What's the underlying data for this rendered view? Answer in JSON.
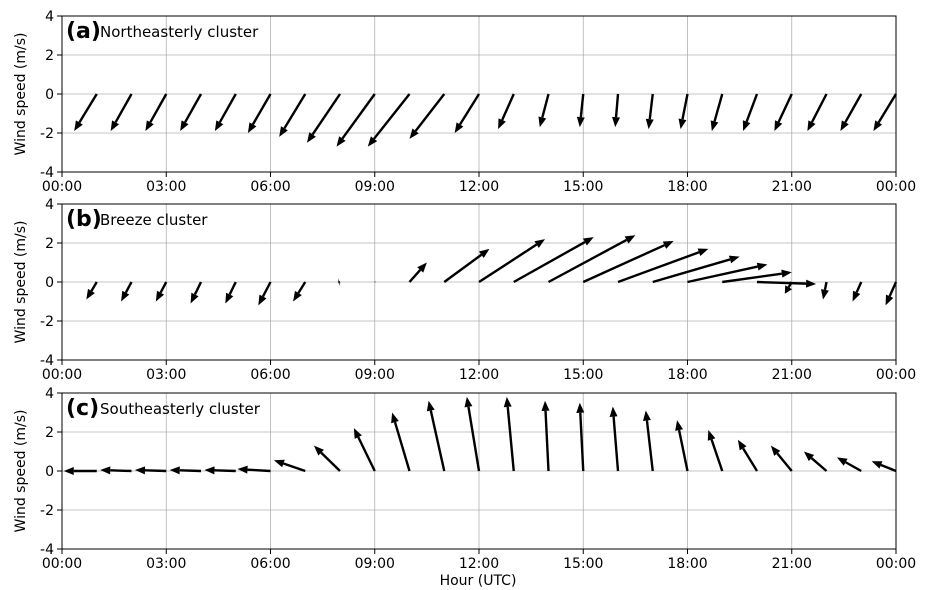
{
  "figure": {
    "xlabel": "Hour (UTC)",
    "ylabel": "Wind speed (m/s)",
    "x_ticks": [
      "00:00",
      "03:00",
      "06:00",
      "09:00",
      "12:00",
      "15:00",
      "18:00",
      "21:00",
      "00:00"
    ],
    "y_ticks": [
      "-4",
      "-2",
      "0",
      "2",
      "4"
    ]
  },
  "chart_data": [
    {
      "type": "quiver",
      "panel_letter": "(a)",
      "panel_name": "Northeasterly cluster",
      "xlabel": "",
      "ylabel": "Wind speed (m/s)",
      "xlim_hours": [
        0,
        24
      ],
      "ylim": [
        -4,
        4
      ],
      "grid": true,
      "hours": [
        0,
        1,
        2,
        3,
        4,
        5,
        6,
        7,
        8,
        9,
        10,
        11,
        12,
        13,
        14,
        15,
        16,
        17,
        18,
        19,
        20,
        21,
        22,
        23
      ],
      "u": [
        -0.65,
        -0.6,
        -0.6,
        -0.6,
        -0.6,
        -0.65,
        -0.75,
        -0.95,
        -1.1,
        -1.2,
        -1.0,
        -0.7,
        -0.45,
        -0.25,
        -0.1,
        -0.08,
        -0.12,
        -0.2,
        -0.3,
        -0.4,
        -0.5,
        -0.55,
        -0.6,
        -0.65
      ],
      "v": [
        -1.9,
        -1.9,
        -1.9,
        -1.9,
        -1.9,
        -2.0,
        -2.2,
        -2.5,
        -2.7,
        -2.7,
        -2.3,
        -2.0,
        -1.8,
        -1.7,
        -1.7,
        -1.7,
        -1.8,
        -1.8,
        -1.9,
        -1.9,
        -1.9,
        -1.9,
        -1.9,
        -1.9
      ]
    },
    {
      "type": "quiver",
      "panel_letter": "(b)",
      "panel_name": "Breeze cluster",
      "xlabel": "",
      "ylabel": "Wind speed (m/s)",
      "xlim_hours": [
        0,
        24
      ],
      "ylim": [
        -4,
        4
      ],
      "grid": true,
      "hours": [
        0,
        1,
        2,
        3,
        4,
        5,
        6,
        7,
        8,
        9,
        10,
        11,
        12,
        13,
        14,
        15,
        16,
        17,
        18,
        19,
        20,
        21,
        22,
        23
      ],
      "u": [
        -0.3,
        -0.3,
        -0.3,
        -0.3,
        -0.3,
        -0.35,
        -0.35,
        -0.05,
        0.02,
        0.5,
        1.3,
        1.9,
        2.3,
        2.5,
        2.6,
        2.6,
        2.5,
        2.3,
        2.0,
        1.7,
        -0.2,
        -0.1,
        -0.25,
        -0.3
      ],
      "v": [
        -0.9,
        -1.0,
        -1.0,
        -1.1,
        -1.1,
        -1.2,
        -1.0,
        -0.02,
        0.01,
        1.0,
        1.7,
        2.2,
        2.3,
        2.4,
        2.1,
        1.7,
        1.3,
        0.9,
        0.5,
        -0.1,
        -0.6,
        -0.9,
        -1.0,
        -1.2
      ]
    },
    {
      "type": "quiver",
      "panel_letter": "(c)",
      "panel_name": "Southeasterly cluster",
      "xlabel": "Hour (UTC)",
      "ylabel": "Wind speed (m/s)",
      "xlim_hours": [
        0,
        24
      ],
      "ylim": [
        -4,
        4
      ],
      "grid": true,
      "hours": [
        0,
        1,
        2,
        3,
        4,
        5,
        6,
        7,
        8,
        9,
        10,
        11,
        12,
        13,
        14,
        15,
        16,
        17,
        18,
        19,
        20,
        21,
        22,
        23
      ],
      "u": [
        -0.95,
        -0.9,
        -0.9,
        -0.9,
        -0.9,
        -0.95,
        -0.9,
        -0.75,
        -0.6,
        -0.5,
        -0.45,
        -0.35,
        -0.2,
        -0.1,
        -0.1,
        -0.15,
        -0.2,
        -0.3,
        -0.4,
        -0.55,
        -0.6,
        -0.65,
        -0.7,
        -0.7
      ],
      "v": [
        0.0,
        0.05,
        0.05,
        0.05,
        0.05,
        0.1,
        0.55,
        1.3,
        2.2,
        3.0,
        3.6,
        3.8,
        3.8,
        3.6,
        3.5,
        3.3,
        3.1,
        2.6,
        2.1,
        1.6,
        1.3,
        1.0,
        0.7,
        0.5
      ]
    }
  ]
}
